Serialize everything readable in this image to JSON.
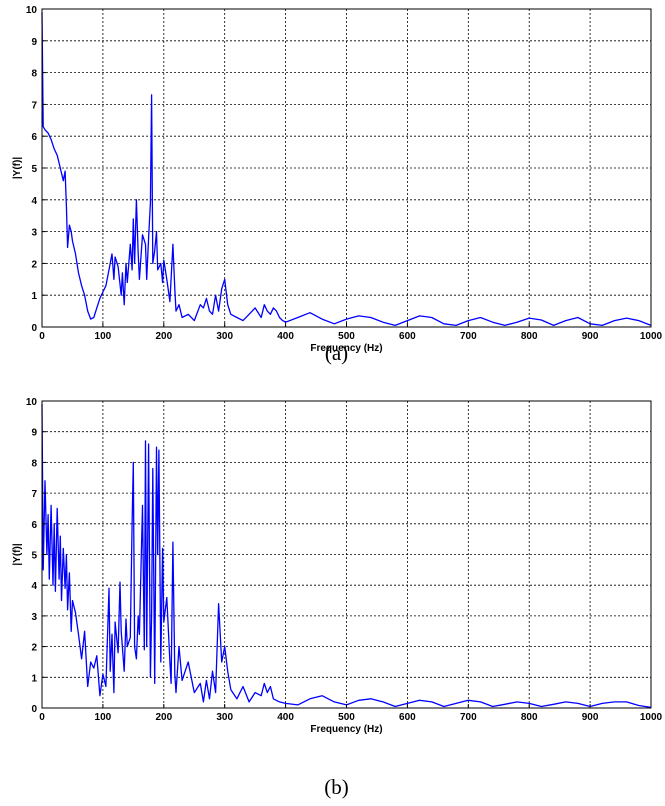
{
  "chart_data": [
    {
      "type": "line",
      "caption": "(a)",
      "xlabel": "Frequency (Hz)",
      "ylabel": "|Y(f)|",
      "xlim": [
        0,
        1000
      ],
      "ylim": [
        0,
        10
      ],
      "xticks": [
        0,
        100,
        200,
        300,
        400,
        500,
        600,
        700,
        800,
        900,
        1000
      ],
      "yticks": [
        0,
        1,
        2,
        3,
        4,
        5,
        6,
        7,
        8,
        9,
        10
      ],
      "grid": true,
      "color": "#0000ff",
      "x": [
        0,
        2,
        5,
        10,
        15,
        20,
        25,
        30,
        35,
        38,
        40,
        42,
        45,
        48,
        50,
        55,
        60,
        65,
        70,
        75,
        80,
        85,
        90,
        95,
        100,
        105,
        110,
        115,
        118,
        120,
        125,
        130,
        132,
        135,
        138,
        140,
        145,
        148,
        150,
        152,
        155,
        158,
        160,
        165,
        170,
        172,
        175,
        178,
        180,
        182,
        185,
        188,
        190,
        195,
        198,
        200,
        205,
        210,
        215,
        218,
        220,
        225,
        230,
        240,
        250,
        260,
        265,
        270,
        275,
        280,
        285,
        290,
        295,
        300,
        305,
        310,
        320,
        330,
        340,
        350,
        360,
        365,
        370,
        375,
        380,
        385,
        390,
        395,
        400,
        420,
        440,
        460,
        480,
        500,
        520,
        540,
        560,
        580,
        600,
        620,
        640,
        660,
        680,
        700,
        720,
        740,
        760,
        780,
        800,
        820,
        840,
        860,
        880,
        900,
        920,
        940,
        960,
        980,
        1000
      ],
      "y": [
        9.9,
        6.3,
        6.2,
        6.1,
        5.9,
        5.6,
        5.4,
        5.0,
        4.6,
        4.9,
        3.8,
        2.5,
        3.2,
        3.0,
        2.7,
        2.3,
        1.7,
        1.3,
        1.0,
        0.5,
        0.25,
        0.3,
        0.6,
        0.9,
        1.1,
        1.3,
        1.8,
        2.3,
        1.5,
        2.2,
        1.9,
        1.0,
        1.7,
        0.7,
        2.0,
        1.4,
        2.6,
        1.8,
        3.4,
        2.0,
        4.0,
        2.3,
        1.5,
        2.9,
        2.6,
        1.5,
        2.8,
        3.9,
        7.3,
        2.0,
        2.4,
        3.0,
        1.8,
        2.0,
        1.4,
        2.1,
        1.5,
        0.8,
        2.6,
        1.2,
        0.5,
        0.7,
        0.3,
        0.4,
        0.2,
        0.7,
        0.6,
        0.9,
        0.5,
        0.4,
        1.0,
        0.5,
        1.2,
        1.5,
        0.7,
        0.4,
        0.3,
        0.2,
        0.4,
        0.6,
        0.3,
        0.7,
        0.5,
        0.4,
        0.6,
        0.5,
        0.3,
        0.2,
        0.15,
        0.3,
        0.45,
        0.25,
        0.1,
        0.25,
        0.35,
        0.3,
        0.15,
        0.05,
        0.2,
        0.35,
        0.3,
        0.1,
        0.05,
        0.2,
        0.3,
        0.15,
        0.05,
        0.15,
        0.28,
        0.22,
        0.05,
        0.2,
        0.3,
        0.1,
        0.05,
        0.2,
        0.28,
        0.2,
        0.05
      ]
    },
    {
      "type": "line",
      "caption": "(b)",
      "xlabel": "Frequency (Hz)",
      "ylabel": "|Y(f)|",
      "xlim": [
        0,
        1000
      ],
      "ylim": [
        0,
        10
      ],
      "xticks": [
        0,
        100,
        200,
        300,
        400,
        500,
        600,
        700,
        800,
        900,
        1000
      ],
      "yticks": [
        0,
        1,
        2,
        3,
        4,
        5,
        6,
        7,
        8,
        9,
        10
      ],
      "grid": true,
      "color": "#0000ff",
      "x": [
        0,
        2,
        5,
        8,
        10,
        12,
        15,
        18,
        20,
        22,
        25,
        28,
        30,
        32,
        35,
        38,
        40,
        42,
        45,
        48,
        50,
        55,
        60,
        65,
        70,
        75,
        80,
        85,
        90,
        95,
        100,
        105,
        110,
        112,
        115,
        118,
        120,
        125,
        128,
        130,
        135,
        138,
        140,
        145,
        148,
        150,
        152,
        155,
        158,
        160,
        165,
        168,
        170,
        172,
        175,
        178,
        180,
        182,
        185,
        188,
        190,
        192,
        195,
        198,
        200,
        205,
        210,
        212,
        215,
        218,
        220,
        225,
        230,
        240,
        250,
        260,
        265,
        270,
        275,
        280,
        285,
        290,
        295,
        300,
        305,
        310,
        320,
        330,
        340,
        350,
        360,
        365,
        370,
        375,
        380,
        390,
        400,
        420,
        440,
        460,
        480,
        500,
        520,
        540,
        560,
        580,
        600,
        620,
        640,
        660,
        680,
        700,
        720,
        740,
        760,
        780,
        800,
        820,
        840,
        860,
        880,
        900,
        920,
        940,
        960,
        980,
        1000
      ],
      "y": [
        9.9,
        4.5,
        7.4,
        5.0,
        6.3,
        4.2,
        6.6,
        4.0,
        6.0,
        3.8,
        6.5,
        4.2,
        5.6,
        3.5,
        5.2,
        3.9,
        5.0,
        3.2,
        4.4,
        2.5,
        3.5,
        3.1,
        2.4,
        1.6,
        2.5,
        0.7,
        1.5,
        1.3,
        1.7,
        0.4,
        1.1,
        0.7,
        3.9,
        1.2,
        2.4,
        0.5,
        2.8,
        1.8,
        4.1,
        2.5,
        1.2,
        2.9,
        2.0,
        2.3,
        6.0,
        8.0,
        2.0,
        1.6,
        3.0,
        2.4,
        6.6,
        1.9,
        8.7,
        2.0,
        8.6,
        1.0,
        3.0,
        7.8,
        0.8,
        8.5,
        5.0,
        8.4,
        1.5,
        5.2,
        2.8,
        3.6,
        1.5,
        0.8,
        5.4,
        1.1,
        0.5,
        2.0,
        0.9,
        1.5,
        0.5,
        0.8,
        0.2,
        0.9,
        0.3,
        1.2,
        0.5,
        3.4,
        1.5,
        2.0,
        1.2,
        0.6,
        0.3,
        0.7,
        0.2,
        0.5,
        0.4,
        0.8,
        0.5,
        0.7,
        0.3,
        0.2,
        0.15,
        0.1,
        0.3,
        0.4,
        0.2,
        0.1,
        0.25,
        0.3,
        0.2,
        0.05,
        0.15,
        0.25,
        0.2,
        0.05,
        0.15,
        0.25,
        0.2,
        0.05,
        0.12,
        0.2,
        0.15,
        0.05,
        0.12,
        0.2,
        0.15,
        0.05,
        0.15,
        0.2,
        0.2,
        0.08,
        0.02
      ]
    }
  ]
}
